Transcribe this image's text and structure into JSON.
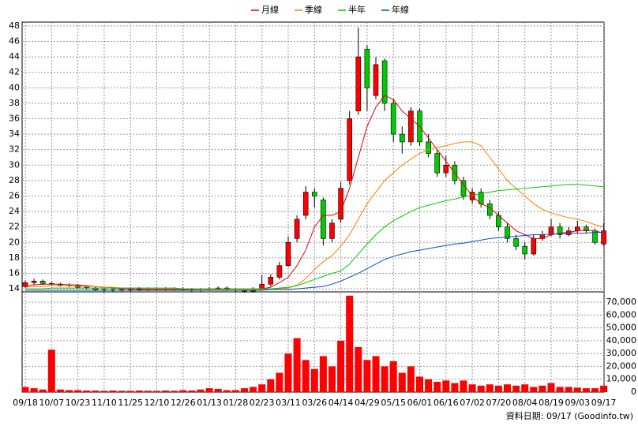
{
  "chart_data": [
    {
      "type": "candlestick",
      "categories": [
        "09/18",
        null,
        null,
        "10/07",
        null,
        null,
        "10/23",
        null,
        null,
        "11/10",
        null,
        null,
        "11/25",
        null,
        null,
        "12/10",
        null,
        null,
        "12/26",
        null,
        null,
        "01/13",
        null,
        null,
        "01/28",
        null,
        null,
        "02/23",
        null,
        null,
        "03/11",
        null,
        null,
        "03/26",
        null,
        null,
        "04/14",
        null,
        null,
        "04/29",
        null,
        null,
        "05/15",
        null,
        null,
        "06/01",
        null,
        null,
        "06/16",
        null,
        null,
        "07/02",
        null,
        null,
        "07/20",
        null,
        null,
        "08/04",
        null,
        null,
        "08/19",
        null,
        null,
        "09/03",
        null,
        null,
        "09/17"
      ],
      "open": [
        14.3,
        14.8,
        15,
        14.7,
        14.6,
        14.5,
        14.4,
        14.2,
        14.1,
        13.9,
        13.8,
        13.9,
        13.8,
        13.9,
        14,
        13.9,
        14,
        13.9,
        14,
        13.9,
        13.8,
        13.9,
        14,
        14.1,
        13.9,
        13.8,
        13.7,
        14,
        14.6,
        15.5,
        17,
        20.5,
        23.5,
        26.5,
        25.5,
        20.5,
        23,
        28,
        37,
        45,
        39,
        43.5,
        38,
        34,
        33,
        37,
        33,
        31.5,
        29,
        30,
        28,
        25.5,
        26.5,
        25,
        23.5,
        22,
        20.5,
        19.5,
        18.5,
        20.5,
        21,
        22,
        21,
        21.5,
        22,
        21.5,
        19.8
      ],
      "high": [
        15.1,
        15.3,
        15.2,
        14.9,
        14.8,
        14.7,
        14.6,
        14.4,
        14.3,
        14.1,
        14.1,
        14.1,
        14.1,
        14.2,
        14.2,
        14.2,
        14.2,
        14.2,
        14.2,
        14.1,
        14.1,
        14.2,
        14.3,
        14.3,
        14.1,
        14,
        14.2,
        15.8,
        15.9,
        17.5,
        20.8,
        23.5,
        27.3,
        27,
        25.8,
        23,
        27.8,
        37,
        47.8,
        45.5,
        44,
        43.8,
        38.5,
        35,
        37.5,
        37.3,
        34,
        32,
        31.2,
        30.5,
        28.5,
        27,
        27,
        25.5,
        24,
        22.5,
        21,
        20,
        21,
        21.5,
        23,
        22.5,
        22,
        22.8,
        22.3,
        21.8,
        22.5
      ],
      "low": [
        14.1,
        14.5,
        14.5,
        14.4,
        14.3,
        14.2,
        14,
        13.9,
        13.7,
        13.5,
        13.6,
        13.6,
        13.6,
        13.7,
        13.7,
        13.7,
        13.7,
        13.7,
        13.7,
        13.6,
        13.6,
        13.7,
        13.8,
        13.7,
        13.5,
        13.5,
        13.5,
        13.9,
        14.3,
        15.2,
        16.8,
        20,
        23,
        24.5,
        19.6,
        20,
        22.5,
        27.5,
        36.5,
        37,
        38.5,
        37,
        33,
        31.5,
        32.5,
        32.5,
        31,
        28.5,
        28.5,
        27.5,
        25.5,
        25,
        24.5,
        23,
        21.5,
        20,
        19,
        17.8,
        18.3,
        20.2,
        20.8,
        20.5,
        20.8,
        21.2,
        21.2,
        19.7,
        19.5
      ],
      "close": [
        14.8,
        15,
        14.7,
        14.6,
        14.5,
        14.4,
        14.2,
        14.1,
        13.9,
        13.8,
        13.9,
        13.8,
        13.9,
        14,
        13.9,
        14,
        13.9,
        14,
        13.9,
        13.8,
        13.9,
        14,
        14.1,
        13.9,
        13.8,
        13.7,
        14,
        14.6,
        15.5,
        17,
        20,
        23,
        26.5,
        26,
        20.5,
        22.5,
        27,
        36,
        44,
        40,
        43,
        38,
        34,
        33,
        37,
        33,
        31.5,
        29,
        30,
        28,
        26,
        26.5,
        25,
        23.5,
        22,
        20.5,
        19.5,
        18.5,
        20.5,
        21,
        22,
        21,
        21.5,
        22,
        21.5,
        20,
        21.5
      ],
      "up_color": "#ff0000",
      "down_color": "#00cc00",
      "series": [
        {
          "name": "月線",
          "color": "#e00000",
          "values": [
            14.4,
            14.5,
            14.6,
            14.6,
            14.6,
            14.5,
            14.5,
            14.4,
            14.3,
            14.2,
            14.1,
            14,
            14,
            13.9,
            13.9,
            13.9,
            13.9,
            13.9,
            13.9,
            13.9,
            13.9,
            13.9,
            13.9,
            14,
            13.9,
            13.9,
            13.9,
            14,
            14.2,
            14.8,
            15.5,
            17,
            19,
            22,
            23.5,
            23.5,
            24,
            27,
            31,
            35,
            37.5,
            39,
            38.5,
            37,
            36,
            35,
            33.5,
            32,
            30.5,
            29,
            27.5,
            26,
            25,
            24.5,
            23.5,
            22.5,
            21.5,
            21,
            20.5,
            20.5,
            21,
            21.2,
            21.3,
            21.5,
            21.6,
            21.5,
            21.2
          ]
        },
        {
          "name": "季線",
          "color": "#ff7f00",
          "values": [
            14.2,
            14.3,
            14.3,
            14.4,
            14.4,
            14.4,
            14.3,
            14.3,
            14.3,
            14.2,
            14.2,
            14.1,
            14.1,
            14.1,
            14,
            14,
            14,
            14,
            14,
            14,
            13.9,
            13.9,
            13.9,
            13.9,
            13.9,
            13.9,
            13.9,
            13.9,
            14,
            14,
            14.1,
            14.5,
            15.3,
            16.5,
            17.5,
            18.3,
            19.5,
            21,
            23,
            25,
            26.5,
            28,
            29,
            30,
            30.8,
            31.5,
            32,
            32.3,
            32.5,
            32.8,
            33,
            33,
            32.5,
            31,
            29.5,
            28,
            27,
            26,
            25,
            24.3,
            23.8,
            23.5,
            23.2,
            23,
            22.7,
            22.3,
            22
          ]
        },
        {
          "name": "半年",
          "color": "#00cc00",
          "values": [
            14,
            14,
            14,
            14.1,
            14.1,
            14.1,
            14.1,
            14.1,
            14.1,
            14.1,
            14.1,
            14.1,
            14.1,
            14.1,
            14.1,
            14.1,
            14.1,
            14.1,
            14,
            14,
            14,
            14,
            14,
            14,
            14,
            14,
            14,
            14,
            14,
            14.1,
            14.2,
            14.4,
            14.8,
            15.2,
            15.6,
            16,
            16.3,
            17.2,
            18.5,
            19.8,
            21,
            22,
            22.8,
            23.4,
            24,
            24.5,
            24.8,
            25.1,
            25.4,
            25.6,
            25.9,
            26.1,
            26.3,
            26.5,
            26.7,
            26.8,
            26.9,
            27,
            27.1,
            27.2,
            27.3,
            27.4,
            27.5,
            27.5,
            27.4,
            27.3,
            27.2
          ]
        },
        {
          "name": "年線",
          "color": "#0050d0",
          "values": [
            13.8,
            13.8,
            13.8,
            13.8,
            13.8,
            13.8,
            13.8,
            13.8,
            13.8,
            13.8,
            13.8,
            13.8,
            13.8,
            13.8,
            13.8,
            13.8,
            13.8,
            13.8,
            13.8,
            13.8,
            13.8,
            13.8,
            13.8,
            13.8,
            13.8,
            13.8,
            13.8,
            13.8,
            13.9,
            13.9,
            13.9,
            14,
            14.1,
            14.2,
            14.3,
            14.6,
            15,
            15.5,
            16,
            16.6,
            17.2,
            17.8,
            18.2,
            18.5,
            18.8,
            19,
            19.2,
            19.4,
            19.6,
            19.8,
            19.9,
            20.1,
            20.3,
            20.5,
            20.6,
            20.7,
            20.8,
            20.9,
            21,
            21,
            21.1,
            21.1,
            21.2,
            21.2,
            21.2,
            21.3,
            21.3
          ]
        }
      ],
      "ylim": [
        13.6,
        48.5
      ],
      "yticks": [
        14,
        16,
        18,
        20,
        22,
        24,
        26,
        28,
        30,
        32,
        34,
        36,
        38,
        40,
        42,
        44,
        46,
        48
      ],
      "grid": true
    },
    {
      "type": "bar",
      "color": "#ff0000",
      "values": [
        4000,
        3000,
        2000,
        33000,
        2000,
        1500,
        1500,
        1200,
        1200,
        1000,
        1200,
        1000,
        1000,
        1200,
        1000,
        1000,
        1200,
        1000,
        1500,
        1200,
        2000,
        3000,
        2500,
        1500,
        1500,
        3000,
        4000,
        6000,
        10000,
        15000,
        30000,
        42000,
        25000,
        18000,
        28000,
        20000,
        40000,
        75000,
        35000,
        25000,
        28000,
        20000,
        24000,
        15000,
        20000,
        12000,
        10000,
        8000,
        9000,
        7000,
        9000,
        6000,
        5000,
        6000,
        5000,
        6000,
        5000,
        6000,
        4000,
        5000,
        7000,
        4000,
        4000,
        3500,
        3000,
        3000,
        5000
      ],
      "ylim": [
        0,
        78000
      ],
      "yticks": [
        0,
        {
          "value": 10000,
          "label": "10,000"
        },
        {
          "value": 20000,
          "label": "20,000"
        },
        {
          "value": 30000,
          "label": "30,000"
        },
        {
          "value": 40000,
          "label": "40,000"
        },
        {
          "value": 50000,
          "label": "50,000"
        },
        {
          "value": 60000,
          "label": "60,000"
        },
        {
          "value": 70000,
          "label": "70,000"
        }
      ],
      "grid": true
    }
  ],
  "footer": "資料日期: 09/17  (Goodinfo.tw)"
}
